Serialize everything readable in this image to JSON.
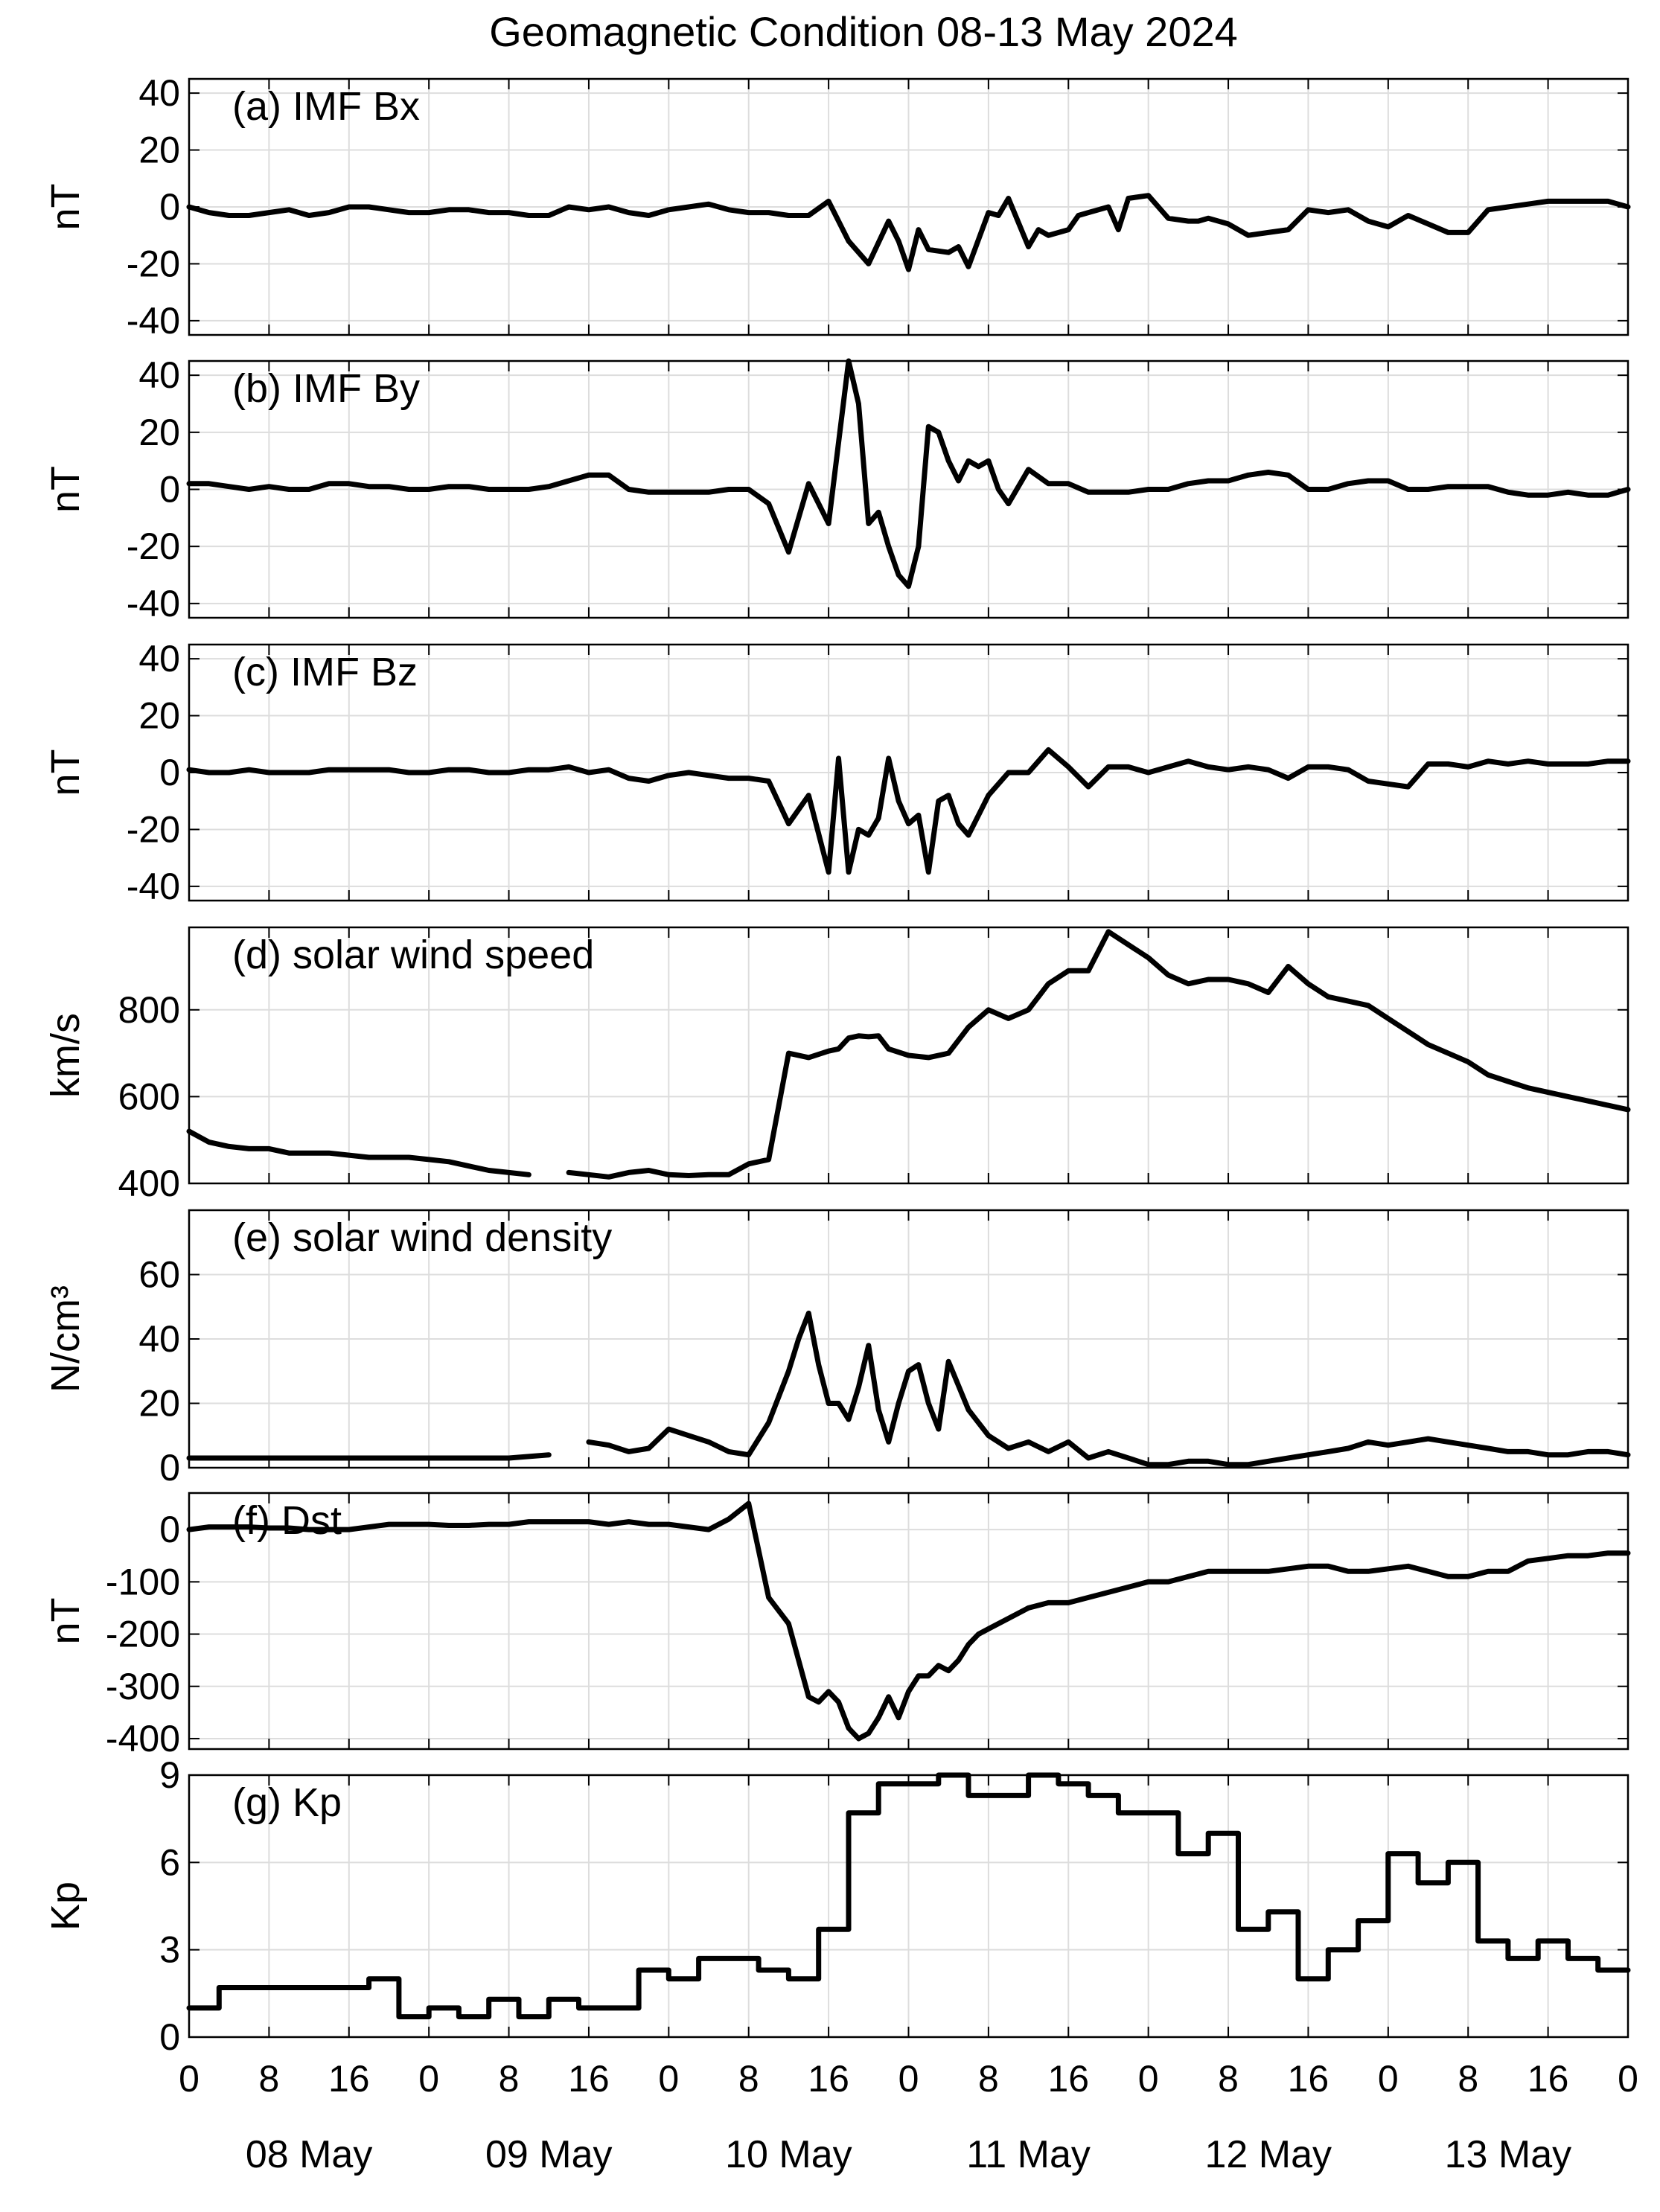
{
  "title": "Geomagnetic Condition 08-13 May 2024",
  "chart_data": [
    {
      "type": "line",
      "panel_title": "(a) IMF Bx",
      "ylabel": "nT",
      "ylim": [
        -45,
        45
      ],
      "yticks": [
        40,
        20,
        0,
        -20,
        -40
      ],
      "grid": true,
      "x_unit": "hours since 00 UT 08 May 2024",
      "x": [
        0,
        2,
        4,
        6,
        8,
        10,
        12,
        14,
        16,
        18,
        20,
        22,
        24,
        26,
        28,
        30,
        32,
        34,
        36,
        38,
        40,
        42,
        44,
        46,
        48,
        50,
        52,
        54,
        56,
        58,
        60,
        62,
        64,
        66,
        68,
        70,
        71,
        72,
        73,
        74,
        76,
        77,
        78,
        80,
        81,
        82,
        84,
        85,
        86,
        88,
        89,
        90,
        92,
        93,
        94,
        96,
        98,
        100,
        101,
        102,
        104,
        106,
        108,
        110,
        112,
        114,
        116,
        118,
        120,
        122,
        124,
        126,
        128,
        130,
        132,
        134,
        136,
        138,
        140,
        142,
        144
      ],
      "values": [
        0,
        -2,
        -3,
        -3,
        -2,
        -1,
        -3,
        -2,
        0,
        0,
        -1,
        -2,
        -2,
        -1,
        -1,
        -2,
        -2,
        -3,
        -3,
        0,
        -1,
        0,
        -2,
        -3,
        -1,
        0,
        1,
        -1,
        -2,
        -2,
        -3,
        -3,
        2,
        -12,
        -20,
        -5,
        -12,
        -22,
        -8,
        -15,
        -16,
        -14,
        -21,
        -2,
        -3,
        3,
        -14,
        -8,
        -10,
        -8,
        -3,
        -2,
        0,
        -8,
        3,
        4,
        -4,
        -5,
        -5,
        -4,
        -6,
        -10,
        -9,
        -8,
        -1,
        -2,
        -1,
        -5,
        -7,
        -3,
        -6,
        -9,
        -9,
        -1,
        0,
        1,
        2,
        2,
        2,
        2,
        0
      ]
    },
    {
      "type": "line",
      "panel_title": "(b) IMF By",
      "ylabel": "nT",
      "ylim": [
        -45,
        45
      ],
      "yticks": [
        40,
        20,
        0,
        -20,
        -40
      ],
      "grid": true,
      "x_unit": "hours since 00 UT 08 May 2024",
      "x": [
        0,
        2,
        4,
        6,
        8,
        10,
        12,
        14,
        16,
        18,
        20,
        22,
        24,
        26,
        28,
        30,
        32,
        34,
        36,
        38,
        40,
        42,
        44,
        46,
        48,
        50,
        52,
        54,
        56,
        58,
        60,
        62,
        64,
        66,
        67,
        68,
        69,
        70,
        71,
        72,
        73,
        74,
        75,
        76,
        77,
        78,
        79,
        80,
        81,
        82,
        84,
        86,
        88,
        90,
        92,
        94,
        96,
        98,
        100,
        102,
        104,
        106,
        108,
        110,
        112,
        114,
        116,
        118,
        120,
        122,
        124,
        126,
        128,
        130,
        132,
        134,
        136,
        138,
        140,
        142,
        144
      ],
      "values": [
        2,
        2,
        1,
        0,
        1,
        0,
        0,
        2,
        2,
        1,
        1,
        0,
        0,
        1,
        1,
        0,
        0,
        0,
        1,
        3,
        5,
        5,
        0,
        -1,
        -1,
        -1,
        -1,
        0,
        0,
        -5,
        -22,
        2,
        -12,
        45,
        30,
        -12,
        -8,
        -20,
        -30,
        -34,
        -20,
        22,
        20,
        10,
        3,
        10,
        8,
        10,
        0,
        -5,
        7,
        2,
        2,
        -1,
        -1,
        -1,
        0,
        0,
        2,
        3,
        3,
        5,
        6,
        5,
        0,
        0,
        2,
        3,
        3,
        0,
        0,
        1,
        1,
        1,
        -1,
        -2,
        -2,
        -1,
        -2,
        -2,
        0
      ]
    },
    {
      "type": "line",
      "panel_title": "(c) IMF Bz",
      "ylabel": "nT",
      "ylim": [
        -45,
        45
      ],
      "yticks": [
        40,
        20,
        0,
        -20,
        -40
      ],
      "grid": true,
      "x_unit": "hours since 00 UT 08 May 2024",
      "x": [
        0,
        2,
        4,
        6,
        8,
        10,
        12,
        14,
        16,
        18,
        20,
        22,
        24,
        26,
        28,
        30,
        32,
        34,
        36,
        38,
        40,
        42,
        44,
        46,
        48,
        50,
        52,
        54,
        56,
        58,
        60,
        62,
        64,
        65,
        66,
        67,
        68,
        69,
        70,
        71,
        72,
        73,
        74,
        75,
        76,
        77,
        78,
        79,
        80,
        82,
        84,
        86,
        88,
        90,
        92,
        94,
        96,
        98,
        100,
        102,
        104,
        106,
        108,
        110,
        112,
        114,
        116,
        118,
        120,
        122,
        124,
        126,
        128,
        130,
        132,
        134,
        136,
        138,
        140,
        142,
        144
      ],
      "values": [
        1,
        0,
        0,
        1,
        0,
        0,
        0,
        1,
        1,
        1,
        1,
        0,
        0,
        1,
        1,
        0,
        0,
        1,
        1,
        2,
        0,
        1,
        -2,
        -3,
        -1,
        0,
        -1,
        -2,
        -2,
        -3,
        -18,
        -8,
        -35,
        5,
        -35,
        -20,
        -22,
        -16,
        5,
        -10,
        -18,
        -15,
        -35,
        -10,
        -8,
        -18,
        -22,
        -15,
        -8,
        0,
        0,
        8,
        2,
        -5,
        2,
        2,
        0,
        2,
        4,
        2,
        1,
        2,
        1,
        -2,
        2,
        2,
        1,
        -3,
        -4,
        -5,
        3,
        3,
        2,
        4,
        3,
        4,
        3,
        3,
        3,
        4,
        4
      ]
    },
    {
      "type": "line",
      "panel_title": "(d) solar wind speed",
      "ylabel": "km/s",
      "ylim": [
        400,
        990
      ],
      "yticks": [
        800,
        600,
        400
      ],
      "grid": true,
      "x_unit": "hours since 00 UT 08 May 2024",
      "x": [
        0,
        2,
        4,
        6,
        8,
        10,
        12,
        14,
        16,
        18,
        20,
        22,
        24,
        26,
        28,
        30,
        32,
        34,
        36,
        38,
        40,
        42,
        44,
        46,
        48,
        50,
        52,
        54,
        56,
        58,
        60,
        62,
        64,
        65,
        66,
        67,
        68,
        69,
        70,
        72,
        74,
        76,
        78,
        80,
        82,
        84,
        86,
        88,
        90,
        92,
        94,
        96,
        98,
        100,
        102,
        104,
        106,
        108,
        110,
        112,
        114,
        116,
        118,
        120,
        122,
        124,
        126,
        128,
        130,
        132,
        134,
        136,
        138,
        140,
        142,
        144
      ],
      "values": [
        520,
        495,
        485,
        480,
        480,
        470,
        470,
        470,
        465,
        460,
        460,
        460,
        455,
        450,
        440,
        430,
        425,
        420,
        null,
        425,
        420,
        415,
        425,
        430,
        420,
        418,
        420,
        420,
        445,
        455,
        700,
        690,
        705,
        710,
        735,
        740,
        738,
        740,
        710,
        695,
        690,
        700,
        760,
        800,
        780,
        800,
        860,
        890,
        890,
        980,
        950,
        920,
        880,
        860,
        870,
        870,
        860,
        840,
        900,
        860,
        830,
        820,
        810,
        780,
        750,
        720,
        700,
        680,
        650,
        635,
        620,
        610,
        600,
        590,
        580,
        570
      ]
    },
    {
      "type": "line",
      "panel_title": "(e) solar wind density",
      "ylabel": "N/cm³",
      "ylim": [
        0,
        80
      ],
      "yticks": [
        60,
        40,
        20,
        0
      ],
      "grid": true,
      "x_unit": "hours since 00 UT 08 May 2024",
      "x": [
        0,
        4,
        8,
        12,
        16,
        20,
        24,
        28,
        32,
        36,
        38,
        40,
        42,
        44,
        46,
        48,
        50,
        52,
        54,
        56,
        58,
        60,
        61,
        62,
        63,
        64,
        65,
        66,
        67,
        68,
        69,
        70,
        71,
        72,
        73,
        74,
        75,
        76,
        78,
        80,
        82,
        84,
        86,
        88,
        90,
        92,
        94,
        96,
        98,
        100,
        102,
        104,
        106,
        108,
        110,
        112,
        114,
        116,
        118,
        120,
        122,
        124,
        126,
        128,
        130,
        132,
        134,
        136,
        138,
        140,
        142,
        144
      ],
      "values": [
        3,
        3,
        3,
        3,
        3,
        3,
        3,
        3,
        3,
        4,
        null,
        8,
        7,
        5,
        6,
        12,
        10,
        8,
        5,
        4,
        14,
        30,
        40,
        48,
        32,
        20,
        20,
        15,
        25,
        38,
        18,
        8,
        20,
        30,
        32,
        20,
        12,
        33,
        18,
        10,
        6,
        8,
        5,
        8,
        3,
        5,
        3,
        1,
        1,
        2,
        2,
        1,
        1,
        2,
        3,
        4,
        5,
        6,
        8,
        7,
        8,
        9,
        8,
        7,
        6,
        5,
        5,
        4,
        4,
        5,
        5,
        4
      ]
    },
    {
      "type": "line",
      "panel_title": "(f) Dst",
      "ylabel": "nT",
      "ylim": [
        -420,
        70
      ],
      "yticks": [
        0,
        -100,
        -200,
        -300,
        -400
      ],
      "grid": true,
      "x_unit": "hours since 00 UT 08 May 2024",
      "x": [
        0,
        2,
        4,
        6,
        8,
        10,
        12,
        14,
        16,
        18,
        20,
        22,
        24,
        26,
        28,
        30,
        32,
        34,
        36,
        38,
        40,
        42,
        44,
        46,
        48,
        50,
        52,
        54,
        56,
        58,
        60,
        62,
        63,
        64,
        65,
        66,
        67,
        68,
        69,
        70,
        71,
        72,
        73,
        74,
        75,
        76,
        77,
        78,
        79,
        80,
        82,
        84,
        86,
        88,
        90,
        92,
        94,
        96,
        98,
        100,
        102,
        104,
        106,
        108,
        110,
        112,
        114,
        116,
        118,
        120,
        122,
        124,
        126,
        128,
        130,
        132,
        134,
        136,
        138,
        140,
        142,
        144
      ],
      "values": [
        0,
        5,
        5,
        5,
        3,
        3,
        0,
        0,
        0,
        5,
        10,
        10,
        10,
        8,
        8,
        10,
        10,
        15,
        15,
        15,
        15,
        10,
        15,
        10,
        10,
        5,
        0,
        20,
        50,
        -130,
        -180,
        -320,
        -330,
        -310,
        -330,
        -380,
        -400,
        -390,
        -360,
        -320,
        -360,
        -310,
        -280,
        -280,
        -260,
        -270,
        -250,
        -220,
        -200,
        -190,
        -170,
        -150,
        -140,
        -140,
        -130,
        -120,
        -110,
        -100,
        -100,
        -90,
        -80,
        -80,
        -80,
        -80,
        -75,
        -70,
        -70,
        -80,
        -80,
        -75,
        -70,
        -80,
        -90,
        -90,
        -80,
        -80,
        -60,
        -55,
        -50,
        -50,
        -45,
        -45
      ]
    },
    {
      "type": "line",
      "panel_title": "(g) Kp",
      "ylabel": "Kp",
      "ylim": [
        0,
        9
      ],
      "yticks": [
        9,
        6,
        3,
        0
      ],
      "grid": true,
      "x_unit": "hours since 00 UT 08 May 2024",
      "step": true,
      "x": [
        0,
        3,
        6,
        9,
        12,
        15,
        18,
        21,
        24,
        27,
        30,
        33,
        36,
        39,
        42,
        45,
        48,
        51,
        54,
        57,
        60,
        63,
        66,
        69,
        72,
        75,
        78,
        81,
        84,
        87,
        90,
        93,
        96,
        99,
        102,
        105,
        108,
        111,
        114,
        117,
        120,
        123,
        126,
        129,
        132,
        135,
        138,
        141,
        144
      ],
      "values": [
        1.0,
        1.7,
        1.7,
        1.7,
        1.7,
        1.7,
        2.0,
        0.7,
        1.0,
        0.7,
        1.3,
        0.7,
        1.3,
        1.0,
        1.0,
        2.3,
        2.0,
        2.7,
        2.7,
        2.3,
        2.0,
        3.7,
        7.7,
        8.7,
        8.7,
        9.0,
        8.3,
        8.3,
        9.0,
        8.7,
        8.3,
        7.7,
        7.7,
        6.3,
        7.0,
        3.7,
        4.3,
        2.0,
        3.0,
        4.0,
        6.3,
        5.3,
        6.0,
        3.3,
        2.7,
        3.3,
        2.7,
        2.3,
        2.3
      ]
    }
  ],
  "xaxis": {
    "hour_labels": [
      "0",
      "8",
      "16",
      "0",
      "8",
      "16",
      "0",
      "8",
      "16",
      "0",
      "8",
      "16",
      "0",
      "8",
      "16",
      "0",
      "8",
      "16",
      "0"
    ],
    "day_labels": [
      "08 May",
      "09 May",
      "10 May",
      "11 May",
      "12 May",
      "13 May"
    ]
  },
  "colors": {
    "line": "#000000",
    "grid": "#dddddd",
    "frame": "#000000"
  }
}
